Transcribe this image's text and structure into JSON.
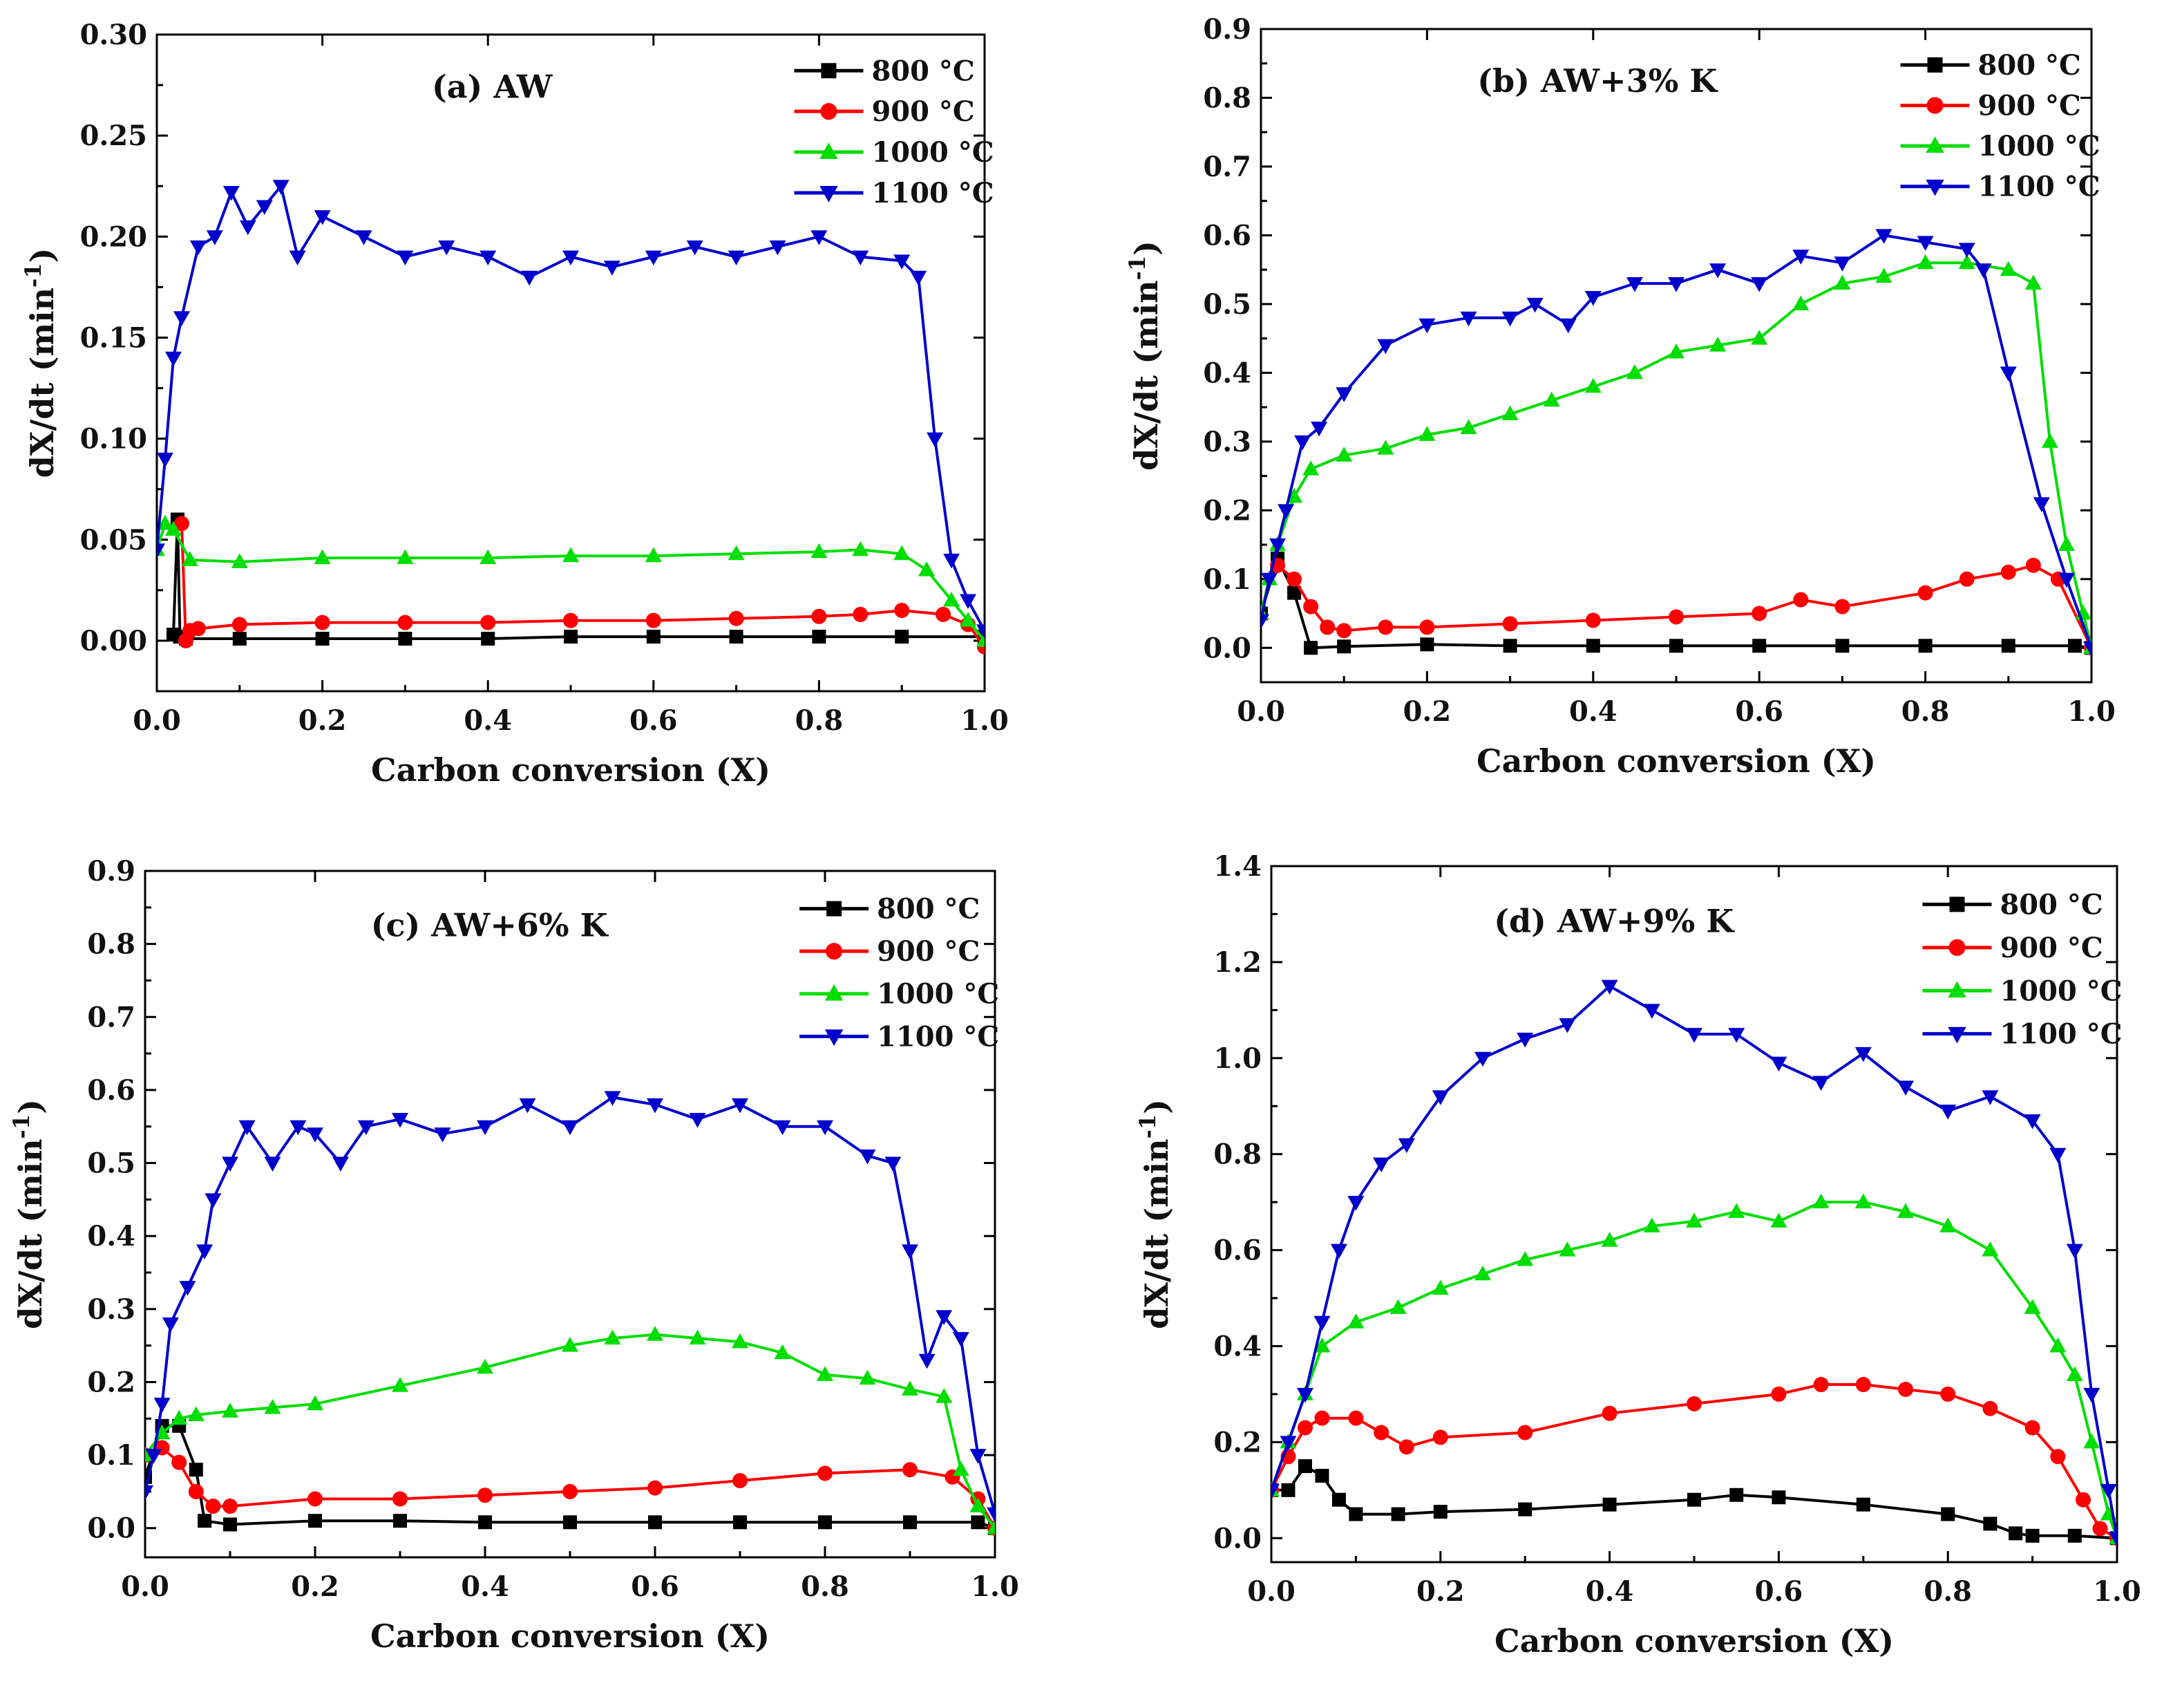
{
  "figure": {
    "series_names": [
      "800 °C",
      "900 °C",
      "1000 °C",
      "1100 °C"
    ],
    "series_colors": [
      "#000000",
      "#ff0000",
      "#00dd00",
      "#0000cc"
    ],
    "series_markers": [
      "square",
      "circle",
      "triangle-up",
      "triangle-down"
    ]
  },
  "chart_data": [
    {
      "type": "line",
      "title": "(a) AW",
      "xlabel": "Carbon conversion (X)",
      "ylabel": "dX/dt (min",
      "ylabel_sup": "-1",
      "ylabel_close": ")",
      "xlim": [
        0.0,
        1.0
      ],
      "ylim": [
        -0.025,
        0.3
      ],
      "xticks": [
        0.0,
        0.2,
        0.4,
        0.6,
        0.8,
        1.0
      ],
      "xtick_labels": [
        "0.0",
        "0.2",
        "0.4",
        "0.6",
        "0.8",
        "1.0"
      ],
      "yticks": [
        0.0,
        0.05,
        0.1,
        0.15,
        0.2,
        0.25,
        0.3
      ],
      "ytick_labels": [
        "0.00",
        "0.05",
        "0.10",
        "0.15",
        "0.20",
        "0.25",
        "0.30"
      ],
      "legend_position": "top-right",
      "series": [
        {
          "name": "800 °C",
          "x": [
            0.02,
            0.025,
            0.028,
            0.035,
            0.1,
            0.2,
            0.3,
            0.4,
            0.5,
            0.6,
            0.7,
            0.8,
            0.9,
            1.0
          ],
          "y": [
            0.003,
            0.06,
            0.002,
            0.001,
            0.001,
            0.001,
            0.001,
            0.001,
            0.002,
            0.002,
            0.002,
            0.002,
            0.002,
            0.002
          ]
        },
        {
          "name": "900 °C",
          "x": [
            0.03,
            0.035,
            0.04,
            0.05,
            0.1,
            0.2,
            0.3,
            0.4,
            0.5,
            0.6,
            0.7,
            0.8,
            0.85,
            0.9,
            0.95,
            0.98,
            1.0
          ],
          "y": [
            0.058,
            0.0,
            0.005,
            0.006,
            0.008,
            0.009,
            0.009,
            0.009,
            0.01,
            0.01,
            0.011,
            0.012,
            0.013,
            0.015,
            0.013,
            0.008,
            -0.003
          ]
        },
        {
          "name": "1000 °C",
          "x": [
            0.0,
            0.01,
            0.02,
            0.04,
            0.1,
            0.2,
            0.3,
            0.4,
            0.5,
            0.6,
            0.7,
            0.8,
            0.85,
            0.9,
            0.93,
            0.96,
            0.98,
            1.0
          ],
          "y": [
            0.045,
            0.058,
            0.055,
            0.04,
            0.039,
            0.041,
            0.041,
            0.041,
            0.042,
            0.042,
            0.043,
            0.044,
            0.045,
            0.043,
            0.035,
            0.02,
            0.01,
            0.0
          ]
        },
        {
          "name": "1100 °C",
          "x": [
            0.0,
            0.01,
            0.02,
            0.03,
            0.05,
            0.07,
            0.09,
            0.11,
            0.13,
            0.15,
            0.17,
            0.2,
            0.25,
            0.3,
            0.35,
            0.4,
            0.45,
            0.5,
            0.55,
            0.6,
            0.65,
            0.7,
            0.75,
            0.8,
            0.85,
            0.9,
            0.92,
            0.94,
            0.96,
            0.98,
            1.0
          ],
          "y": [
            0.045,
            0.09,
            0.14,
            0.16,
            0.195,
            0.2,
            0.222,
            0.205,
            0.215,
            0.225,
            0.19,
            0.21,
            0.2,
            0.19,
            0.195,
            0.19,
            0.18,
            0.19,
            0.185,
            0.19,
            0.195,
            0.19,
            0.195,
            0.2,
            0.19,
            0.188,
            0.18,
            0.1,
            0.04,
            0.02,
            0.005
          ]
        }
      ]
    },
    {
      "type": "line",
      "title": "(b) AW+3% K",
      "xlabel": "Carbon conversion (X)",
      "ylabel": "dX/dt (min",
      "ylabel_sup": "-1",
      "ylabel_close": ")",
      "xlim": [
        0.0,
        1.0
      ],
      "ylim": [
        -0.05,
        0.9
      ],
      "xticks": [
        0.0,
        0.2,
        0.4,
        0.6,
        0.8,
        1.0
      ],
      "xtick_labels": [
        "0.0",
        "0.2",
        "0.4",
        "0.6",
        "0.8",
        "1.0"
      ],
      "yticks": [
        0.0,
        0.1,
        0.2,
        0.3,
        0.4,
        0.5,
        0.6,
        0.7,
        0.8,
        0.9
      ],
      "ytick_labels": [
        "0.0",
        "0.1",
        "0.2",
        "0.3",
        "0.4",
        "0.5",
        "0.6",
        "0.7",
        "0.8",
        "0.9"
      ],
      "legend_position": "top-right",
      "series": [
        {
          "name": "800 °C",
          "x": [
            0.0,
            0.02,
            0.04,
            0.06,
            0.1,
            0.2,
            0.3,
            0.4,
            0.5,
            0.6,
            0.7,
            0.8,
            0.9,
            0.98,
            1.0
          ],
          "y": [
            0.05,
            0.13,
            0.08,
            0.0,
            0.002,
            0.005,
            0.003,
            0.003,
            0.003,
            0.003,
            0.003,
            0.003,
            0.003,
            0.003,
            0.0
          ]
        },
        {
          "name": "900 °C",
          "x": [
            0.02,
            0.04,
            0.06,
            0.08,
            0.1,
            0.15,
            0.2,
            0.3,
            0.4,
            0.5,
            0.6,
            0.65,
            0.7,
            0.8,
            0.85,
            0.9,
            0.93,
            0.96,
            1.0
          ],
          "y": [
            0.12,
            0.1,
            0.06,
            0.03,
            0.025,
            0.03,
            0.03,
            0.035,
            0.04,
            0.045,
            0.05,
            0.07,
            0.06,
            0.08,
            0.1,
            0.11,
            0.12,
            0.1,
            0.0
          ]
        },
        {
          "name": "1000 °C",
          "x": [
            0.0,
            0.01,
            0.02,
            0.04,
            0.06,
            0.1,
            0.15,
            0.2,
            0.25,
            0.3,
            0.35,
            0.4,
            0.45,
            0.5,
            0.55,
            0.6,
            0.65,
            0.7,
            0.75,
            0.8,
            0.85,
            0.9,
            0.93,
            0.95,
            0.97,
            0.99,
            1.0
          ],
          "y": [
            0.05,
            0.1,
            0.15,
            0.22,
            0.26,
            0.28,
            0.29,
            0.31,
            0.32,
            0.34,
            0.36,
            0.38,
            0.4,
            0.43,
            0.44,
            0.45,
            0.5,
            0.53,
            0.54,
            0.56,
            0.56,
            0.55,
            0.53,
            0.3,
            0.15,
            0.05,
            0.0
          ]
        },
        {
          "name": "1100 °C",
          "x": [
            0.0,
            0.01,
            0.02,
            0.03,
            0.05,
            0.07,
            0.1,
            0.15,
            0.2,
            0.25,
            0.3,
            0.33,
            0.37,
            0.4,
            0.45,
            0.5,
            0.55,
            0.6,
            0.65,
            0.7,
            0.75,
            0.8,
            0.85,
            0.87,
            0.9,
            0.94,
            0.97,
            1.0
          ],
          "y": [
            0.04,
            0.1,
            0.15,
            0.2,
            0.3,
            0.32,
            0.37,
            0.44,
            0.47,
            0.48,
            0.48,
            0.5,
            0.47,
            0.51,
            0.53,
            0.53,
            0.55,
            0.53,
            0.57,
            0.56,
            0.6,
            0.59,
            0.58,
            0.55,
            0.4,
            0.21,
            0.1,
            0.0
          ]
        }
      ]
    },
    {
      "type": "line",
      "title": "(c) AW+6% K",
      "xlabel": "Carbon conversion (X)",
      "ylabel": "dX/dt (min",
      "ylabel_sup": "-1",
      "ylabel_close": ")",
      "xlim": [
        0.0,
        1.0
      ],
      "ylim": [
        -0.04,
        0.9
      ],
      "xticks": [
        0.0,
        0.2,
        0.4,
        0.6,
        0.8,
        1.0
      ],
      "xtick_labels": [
        "0.0",
        "0.2",
        "0.4",
        "0.6",
        "0.8",
        "1.0"
      ],
      "yticks": [
        0.0,
        0.1,
        0.2,
        0.3,
        0.4,
        0.5,
        0.6,
        0.7,
        0.8,
        0.9
      ],
      "ytick_labels": [
        "0.0",
        "0.1",
        "0.2",
        "0.3",
        "0.4",
        "0.5",
        "0.6",
        "0.7",
        "0.8",
        "0.9"
      ],
      "legend_position": "top-right",
      "series": [
        {
          "name": "800 °C",
          "x": [
            0.0,
            0.02,
            0.04,
            0.06,
            0.07,
            0.1,
            0.2,
            0.3,
            0.4,
            0.5,
            0.6,
            0.7,
            0.8,
            0.9,
            0.98,
            1.0
          ],
          "y": [
            0.07,
            0.14,
            0.14,
            0.08,
            0.01,
            0.005,
            0.01,
            0.01,
            0.008,
            0.008,
            0.008,
            0.008,
            0.008,
            0.008,
            0.008,
            0.0
          ]
        },
        {
          "name": "900 °C",
          "x": [
            0.0,
            0.02,
            0.04,
            0.06,
            0.08,
            0.1,
            0.2,
            0.3,
            0.4,
            0.5,
            0.6,
            0.7,
            0.8,
            0.9,
            0.95,
            0.98,
            1.0
          ],
          "y": [
            0.1,
            0.11,
            0.09,
            0.05,
            0.03,
            0.03,
            0.04,
            0.04,
            0.045,
            0.05,
            0.055,
            0.065,
            0.075,
            0.08,
            0.07,
            0.04,
            0.0
          ]
        },
        {
          "name": "1000 °C",
          "x": [
            0.0,
            0.02,
            0.04,
            0.06,
            0.1,
            0.15,
            0.2,
            0.3,
            0.4,
            0.5,
            0.55,
            0.6,
            0.65,
            0.7,
            0.75,
            0.8,
            0.85,
            0.9,
            0.94,
            0.96,
            0.98,
            1.0
          ],
          "y": [
            0.1,
            0.13,
            0.15,
            0.155,
            0.16,
            0.165,
            0.17,
            0.195,
            0.22,
            0.25,
            0.26,
            0.265,
            0.26,
            0.255,
            0.24,
            0.21,
            0.205,
            0.19,
            0.18,
            0.08,
            0.03,
            0.0
          ]
        },
        {
          "name": "1100 °C",
          "x": [
            0.0,
            0.01,
            0.02,
            0.03,
            0.05,
            0.07,
            0.08,
            0.1,
            0.12,
            0.15,
            0.18,
            0.2,
            0.23,
            0.26,
            0.3,
            0.35,
            0.4,
            0.45,
            0.5,
            0.55,
            0.6,
            0.65,
            0.7,
            0.75,
            0.8,
            0.85,
            0.88,
            0.9,
            0.92,
            0.94,
            0.96,
            0.98,
            1.0
          ],
          "y": [
            0.05,
            0.1,
            0.17,
            0.28,
            0.33,
            0.38,
            0.45,
            0.5,
            0.55,
            0.5,
            0.55,
            0.54,
            0.5,
            0.55,
            0.56,
            0.54,
            0.55,
            0.58,
            0.55,
            0.59,
            0.58,
            0.56,
            0.58,
            0.55,
            0.55,
            0.51,
            0.5,
            0.38,
            0.23,
            0.29,
            0.26,
            0.1,
            0.02
          ]
        }
      ]
    },
    {
      "type": "line",
      "title": "(d) AW+9% K",
      "xlabel": "Carbon conversion (X)",
      "ylabel": "dX/dt (min",
      "ylabel_sup": "-1",
      "ylabel_close": ")",
      "xlim": [
        0.0,
        1.0
      ],
      "ylim": [
        -0.05,
        1.4
      ],
      "xticks": [
        0.0,
        0.2,
        0.4,
        0.6,
        0.8,
        1.0
      ],
      "xtick_labels": [
        "0.0",
        "0.2",
        "0.4",
        "0.6",
        "0.8",
        "1.0"
      ],
      "yticks": [
        0.0,
        0.2,
        0.4,
        0.6,
        0.8,
        1.0,
        1.2,
        1.4
      ],
      "ytick_labels": [
        "0.0",
        "0.2",
        "0.4",
        "0.6",
        "0.8",
        "1.0",
        "1.2",
        "1.4"
      ],
      "legend_position": "top-right",
      "series": [
        {
          "name": "800 °C",
          "x": [
            0.0,
            0.02,
            0.04,
            0.06,
            0.08,
            0.1,
            0.15,
            0.2,
            0.3,
            0.4,
            0.5,
            0.55,
            0.6,
            0.7,
            0.8,
            0.85,
            0.88,
            0.9,
            0.95,
            1.0
          ],
          "y": [
            0.1,
            0.1,
            0.15,
            0.13,
            0.08,
            0.05,
            0.05,
            0.055,
            0.06,
            0.07,
            0.08,
            0.09,
            0.085,
            0.07,
            0.05,
            0.03,
            0.01,
            0.005,
            0.005,
            0.0
          ]
        },
        {
          "name": "900 °C",
          "x": [
            0.0,
            0.02,
            0.04,
            0.06,
            0.1,
            0.13,
            0.16,
            0.2,
            0.3,
            0.4,
            0.5,
            0.6,
            0.65,
            0.7,
            0.75,
            0.8,
            0.85,
            0.9,
            0.93,
            0.96,
            0.98,
            1.0
          ],
          "y": [
            0.1,
            0.17,
            0.23,
            0.25,
            0.25,
            0.22,
            0.19,
            0.21,
            0.22,
            0.26,
            0.28,
            0.3,
            0.32,
            0.32,
            0.31,
            0.3,
            0.27,
            0.23,
            0.17,
            0.08,
            0.02,
            0.0
          ]
        },
        {
          "name": "1000 °C",
          "x": [
            0.0,
            0.02,
            0.04,
            0.06,
            0.1,
            0.15,
            0.2,
            0.25,
            0.3,
            0.35,
            0.4,
            0.45,
            0.5,
            0.55,
            0.6,
            0.65,
            0.7,
            0.75,
            0.8,
            0.85,
            0.9,
            0.93,
            0.95,
            0.97,
            0.99,
            1.0
          ],
          "y": [
            0.1,
            0.2,
            0.3,
            0.4,
            0.45,
            0.48,
            0.52,
            0.55,
            0.58,
            0.6,
            0.62,
            0.65,
            0.66,
            0.68,
            0.66,
            0.7,
            0.7,
            0.68,
            0.65,
            0.6,
            0.48,
            0.4,
            0.34,
            0.2,
            0.05,
            0.0
          ]
        },
        {
          "name": "1100 °C",
          "x": [
            0.0,
            0.02,
            0.04,
            0.06,
            0.08,
            0.1,
            0.13,
            0.16,
            0.2,
            0.25,
            0.3,
            0.35,
            0.4,
            0.45,
            0.5,
            0.55,
            0.6,
            0.65,
            0.7,
            0.75,
            0.8,
            0.85,
            0.9,
            0.93,
            0.95,
            0.97,
            0.99,
            1.0
          ],
          "y": [
            0.1,
            0.2,
            0.3,
            0.45,
            0.6,
            0.7,
            0.78,
            0.82,
            0.92,
            1.0,
            1.04,
            1.07,
            1.15,
            1.1,
            1.05,
            1.05,
            0.99,
            0.95,
            1.01,
            0.94,
            0.89,
            0.92,
            0.87,
            0.8,
            0.6,
            0.3,
            0.1,
            0.0
          ]
        }
      ]
    }
  ]
}
